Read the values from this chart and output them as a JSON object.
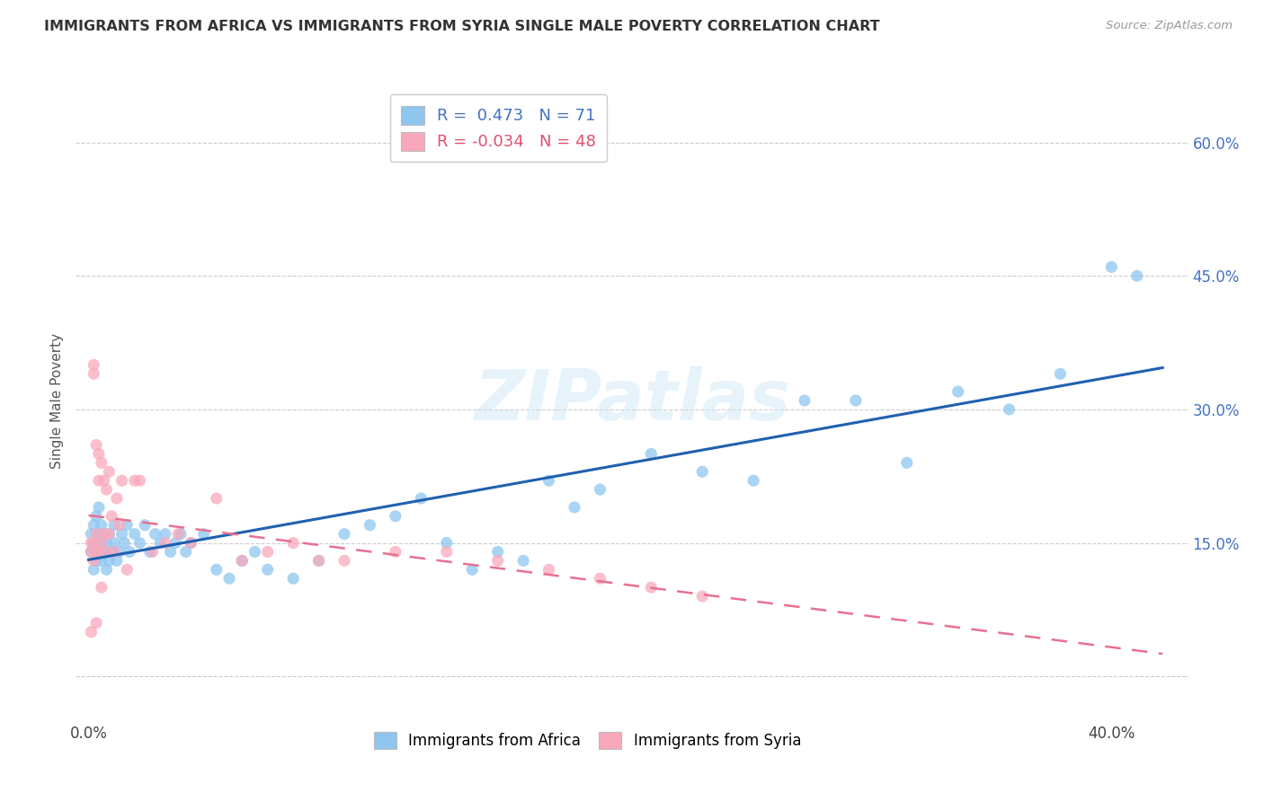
{
  "title": "IMMIGRANTS FROM AFRICA VS IMMIGRANTS FROM SYRIA SINGLE MALE POVERTY CORRELATION CHART",
  "source": "Source: ZipAtlas.com",
  "ylabel": "Single Male Poverty",
  "yticks": [
    "",
    "15.0%",
    "30.0%",
    "45.0%",
    "60.0%"
  ],
  "ytick_vals": [
    0.0,
    0.15,
    0.3,
    0.45,
    0.6
  ],
  "xtick_vals": [
    0.0,
    0.1,
    0.2,
    0.3,
    0.4
  ],
  "xtick_labels_show": [
    "0.0%",
    "",
    "",
    "",
    "40.0%"
  ],
  "xlim": [
    -0.005,
    0.43
  ],
  "ylim": [
    -0.05,
    0.67
  ],
  "r_africa": 0.473,
  "n_africa": 71,
  "r_syria": -0.034,
  "n_syria": 48,
  "africa_color": "#8ec6f0",
  "syria_color": "#f9a8bc",
  "africa_line_color": "#2060b0",
  "syria_line_color": "#e87090",
  "background_color": "#ffffff",
  "watermark": "ZIPatlas",
  "legend_label_africa": "Immigrants from Africa",
  "legend_label_syria": "Immigrants from Syria",
  "africa_scatter_x": [
    0.001,
    0.001,
    0.002,
    0.002,
    0.002,
    0.003,
    0.003,
    0.003,
    0.004,
    0.004,
    0.004,
    0.005,
    0.005,
    0.005,
    0.006,
    0.006,
    0.007,
    0.007,
    0.008,
    0.008,
    0.009,
    0.01,
    0.01,
    0.011,
    0.012,
    0.013,
    0.014,
    0.015,
    0.016,
    0.018,
    0.02,
    0.022,
    0.024,
    0.026,
    0.028,
    0.03,
    0.032,
    0.034,
    0.036,
    0.038,
    0.04,
    0.045,
    0.05,
    0.055,
    0.06,
    0.065,
    0.07,
    0.08,
    0.09,
    0.1,
    0.11,
    0.12,
    0.13,
    0.14,
    0.15,
    0.16,
    0.17,
    0.18,
    0.19,
    0.2,
    0.22,
    0.24,
    0.26,
    0.28,
    0.3,
    0.32,
    0.34,
    0.36,
    0.38,
    0.4,
    0.41
  ],
  "africa_scatter_y": [
    0.14,
    0.16,
    0.12,
    0.15,
    0.17,
    0.13,
    0.15,
    0.18,
    0.14,
    0.16,
    0.19,
    0.13,
    0.15,
    0.17,
    0.14,
    0.16,
    0.12,
    0.15,
    0.13,
    0.16,
    0.14,
    0.15,
    0.17,
    0.13,
    0.14,
    0.16,
    0.15,
    0.17,
    0.14,
    0.16,
    0.15,
    0.17,
    0.14,
    0.16,
    0.15,
    0.16,
    0.14,
    0.15,
    0.16,
    0.14,
    0.15,
    0.16,
    0.12,
    0.11,
    0.13,
    0.14,
    0.12,
    0.11,
    0.13,
    0.16,
    0.17,
    0.18,
    0.2,
    0.15,
    0.12,
    0.14,
    0.13,
    0.22,
    0.19,
    0.21,
    0.25,
    0.23,
    0.22,
    0.31,
    0.31,
    0.24,
    0.32,
    0.3,
    0.34,
    0.46,
    0.45
  ],
  "syria_scatter_x": [
    0.001,
    0.001,
    0.001,
    0.002,
    0.002,
    0.002,
    0.002,
    0.003,
    0.003,
    0.003,
    0.003,
    0.004,
    0.004,
    0.004,
    0.005,
    0.005,
    0.005,
    0.006,
    0.006,
    0.007,
    0.007,
    0.008,
    0.008,
    0.009,
    0.01,
    0.011,
    0.012,
    0.013,
    0.015,
    0.018,
    0.02,
    0.025,
    0.03,
    0.035,
    0.04,
    0.05,
    0.06,
    0.07,
    0.08,
    0.09,
    0.1,
    0.12,
    0.14,
    0.16,
    0.18,
    0.2,
    0.22,
    0.24
  ],
  "syria_scatter_y": [
    0.14,
    0.15,
    0.05,
    0.15,
    0.13,
    0.35,
    0.34,
    0.26,
    0.16,
    0.14,
    0.06,
    0.25,
    0.14,
    0.22,
    0.1,
    0.15,
    0.24,
    0.22,
    0.16,
    0.21,
    0.14,
    0.23,
    0.16,
    0.18,
    0.14,
    0.2,
    0.17,
    0.22,
    0.12,
    0.22,
    0.22,
    0.14,
    0.15,
    0.16,
    0.15,
    0.2,
    0.13,
    0.14,
    0.15,
    0.13,
    0.13,
    0.14,
    0.14,
    0.13,
    0.12,
    0.11,
    0.1,
    0.09
  ]
}
